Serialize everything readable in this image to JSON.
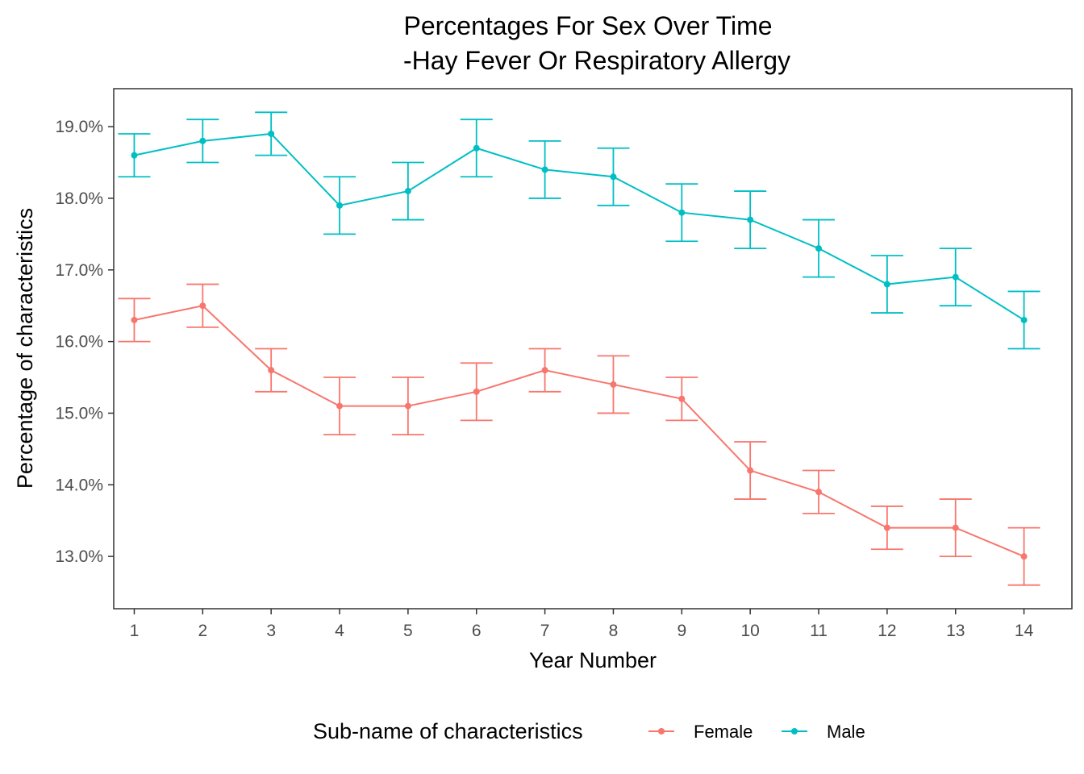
{
  "chart_data": {
    "type": "line",
    "title": "Percentages For Sex Over Time",
    "subtitle": "-Hay Fever Or Respiratory Allergy",
    "xlabel": "Year Number",
    "ylabel": "Percentage of characteristics",
    "x": [
      1,
      2,
      3,
      4,
      5,
      6,
      7,
      8,
      9,
      10,
      11,
      12,
      13,
      14
    ],
    "xlim": [
      0.7,
      14.7
    ],
    "ylim": [
      12.27,
      19.53
    ],
    "yticks": [
      13.0,
      14.0,
      15.0,
      16.0,
      17.0,
      18.0,
      19.0
    ],
    "ytick_labels": [
      "13.0%",
      "14.0%",
      "15.0%",
      "16.0%",
      "17.0%",
      "18.0%",
      "19.0%"
    ],
    "grid": false,
    "legend": {
      "title": "Sub-name of characteristics",
      "position": "bottom"
    },
    "series": [
      {
        "name": "Female",
        "color": "#F8766D",
        "values": [
          16.3,
          16.5,
          15.6,
          15.1,
          15.1,
          15.3,
          15.6,
          15.4,
          15.2,
          14.2,
          13.9,
          13.4,
          13.4,
          13.0
        ],
        "lower": [
          16.0,
          16.2,
          15.3,
          14.7,
          14.7,
          14.9,
          15.3,
          15.0,
          14.9,
          13.8,
          13.6,
          13.1,
          13.0,
          12.6
        ],
        "upper": [
          16.6,
          16.8,
          15.9,
          15.5,
          15.5,
          15.7,
          15.9,
          15.8,
          15.5,
          14.6,
          14.2,
          13.7,
          13.8,
          13.4
        ]
      },
      {
        "name": "Male",
        "color": "#00BFC4",
        "values": [
          18.6,
          18.8,
          18.9,
          17.9,
          18.1,
          18.7,
          18.4,
          18.3,
          17.8,
          17.7,
          17.3,
          16.8,
          16.9,
          16.3
        ],
        "lower": [
          18.3,
          18.5,
          18.6,
          17.5,
          17.7,
          18.3,
          18.0,
          17.9,
          17.4,
          17.3,
          16.9,
          16.4,
          16.5,
          15.9
        ],
        "upper": [
          18.9,
          19.1,
          19.2,
          18.3,
          18.5,
          19.1,
          18.8,
          18.7,
          18.2,
          18.1,
          17.7,
          17.2,
          17.3,
          16.7
        ]
      }
    ]
  }
}
